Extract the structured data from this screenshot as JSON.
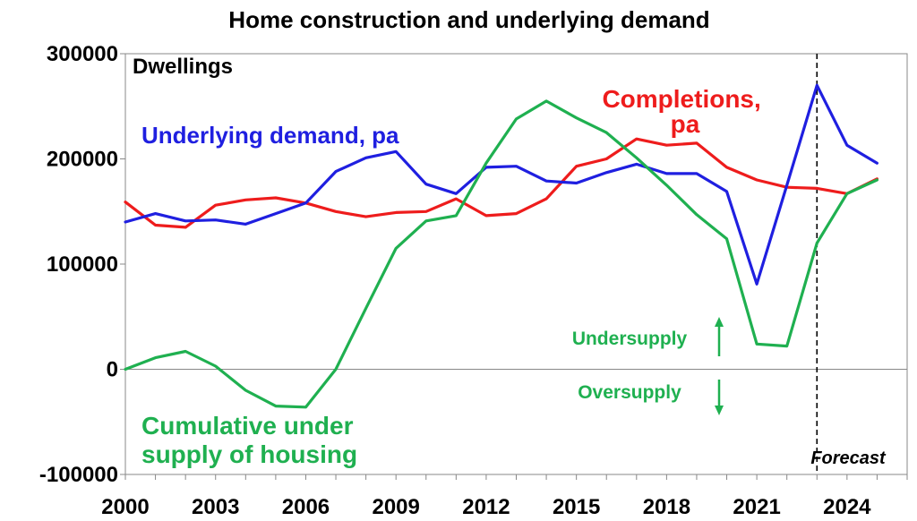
{
  "chart_data": {
    "type": "line",
    "title": "Home construction and underlying demand",
    "unit_label": "Dwellings",
    "x_ticks": [
      "2000",
      "2003",
      "2006",
      "2009",
      "2012",
      "2015",
      "2018",
      "2021",
      "2024"
    ],
    "y_ticks": [
      "300000",
      "200000",
      "100000",
      "0",
      "-100000"
    ],
    "xlim": [
      2000,
      2026
    ],
    "ylim": [
      -100000,
      300000
    ],
    "grid": false,
    "x": [
      2000,
      2001,
      2002,
      2003,
      2004,
      2005,
      2006,
      2007,
      2008,
      2009,
      2010,
      2011,
      2012,
      2013,
      2014,
      2015,
      2016,
      2017,
      2018,
      2019,
      2020,
      2021,
      2022,
      2023,
      2024,
      2025
    ],
    "series": [
      {
        "name": "Underlying demand, pa",
        "color": "#1f1fe0",
        "values": [
          140000,
          148000,
          141000,
          142000,
          138000,
          148000,
          158000,
          188000,
          201000,
          207000,
          176000,
          167000,
          192000,
          193000,
          179000,
          177000,
          187000,
          195000,
          186000,
          186000,
          169000,
          81000,
          175000,
          270000,
          213000,
          196000
        ]
      },
      {
        "name": "Completions, pa",
        "color": "#ee1c1c",
        "values": [
          159000,
          137000,
          135000,
          156000,
          161000,
          163000,
          158000,
          150000,
          145000,
          149000,
          150000,
          162000,
          146000,
          148000,
          162000,
          193000,
          200000,
          219000,
          213000,
          215000,
          192000,
          180000,
          173000,
          172000,
          167000,
          181000
        ]
      },
      {
        "name": "Cumulative under supply of housing",
        "color": "#1fb050",
        "values": [
          0,
          11000,
          17000,
          3000,
          -20000,
          -35000,
          -36000,
          0,
          58000,
          115000,
          141000,
          146000,
          196000,
          238000,
          255000,
          239000,
          225000,
          201000,
          175000,
          147000,
          124000,
          24000,
          22000,
          120000,
          167000,
          180000
        ]
      }
    ],
    "forecast_from": 2023,
    "annotations": {
      "forecast": "Forecast",
      "undersupply": "Undersupply",
      "oversupply": "Oversupply"
    }
  }
}
